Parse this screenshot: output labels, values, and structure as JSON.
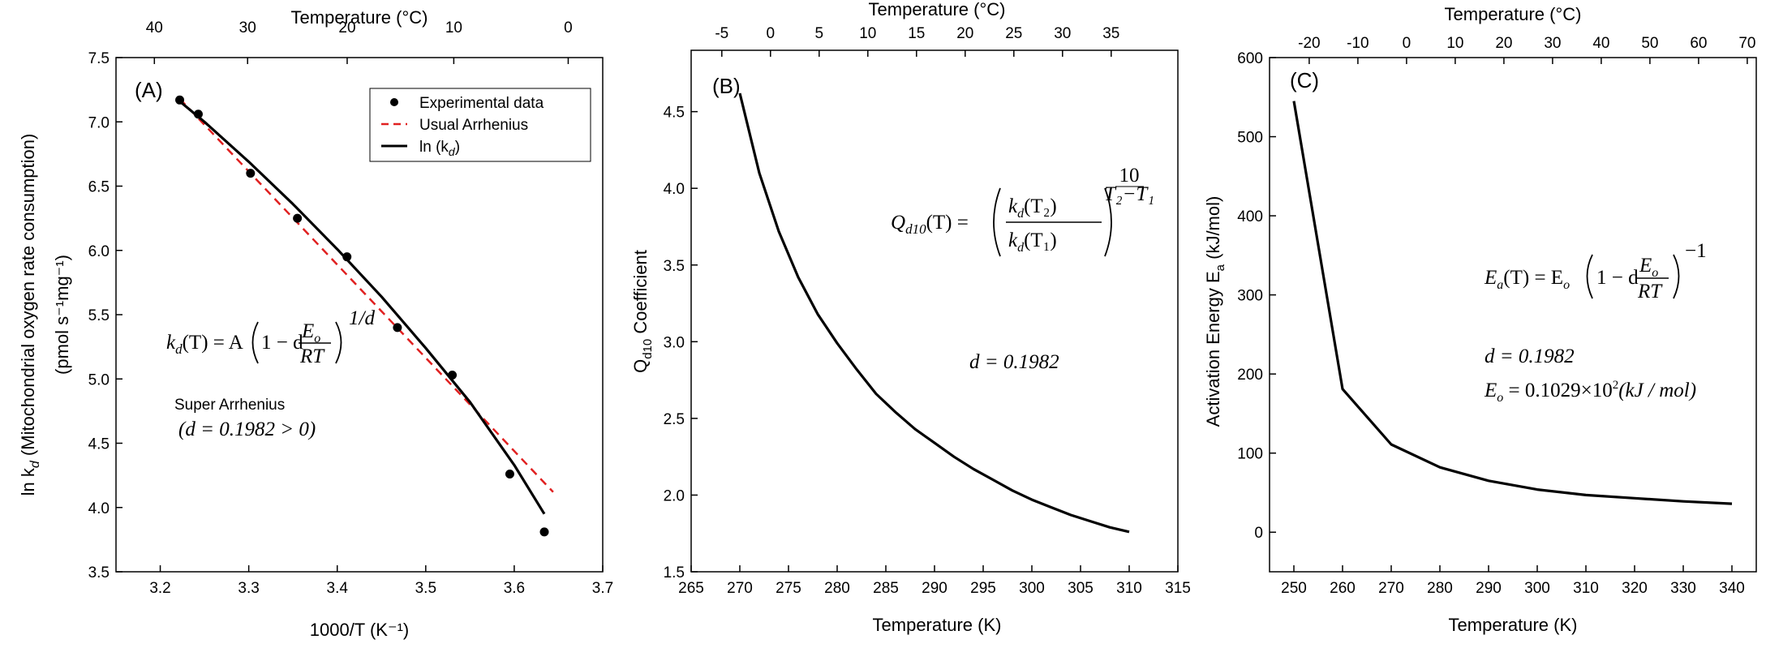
{
  "colors": {
    "curve": "#000000",
    "points": "#000000",
    "arrhenius": "#e02020"
  },
  "chart_data": [
    {
      "type": "scatter",
      "panel_label": "(A)",
      "top_axis_label": "Temperature (°C)",
      "top_ticks": [
        "40",
        "30",
        "20",
        "10",
        "0"
      ],
      "top_tick_values_C": [
        40,
        30,
        20,
        10,
        0
      ],
      "xlabel": "1000/T (K⁻¹)",
      "ylabel_line1": "ln k",
      "ylabel_line1_sub": "d",
      "ylabel_line1_rest": " (Mitochondrial oxygen rate consumption)",
      "ylabel_line2": "(pmol s⁻¹mg⁻¹)",
      "xlim": [
        3.15,
        3.7
      ],
      "ylim": [
        3.5,
        7.5
      ],
      "x_ticks": [
        "3.2",
        "3.3",
        "3.4",
        "3.5",
        "3.6",
        "3.7"
      ],
      "y_ticks": [
        "3.5",
        "4.0",
        "4.5",
        "5.0",
        "5.5",
        "6.0",
        "6.5",
        "7.0",
        "7.5"
      ],
      "legend": [
        {
          "name": "Experimental data",
          "style": "marker"
        },
        {
          "name": "Usual Arrhenius",
          "style": "dashed"
        },
        {
          "name": "ln (k",
          "sub": "d",
          "tail": ")",
          "style": "solid"
        }
      ],
      "experimental_data": {
        "x": [
          3.222,
          3.243,
          3.302,
          3.355,
          3.411,
          3.468,
          3.53,
          3.595,
          3.634
        ],
        "y": [
          7.17,
          7.06,
          6.6,
          6.25,
          5.95,
          5.4,
          5.03,
          4.26,
          3.81
        ]
      },
      "usual_arrhenius": {
        "x": [
          3.222,
          3.644
        ],
        "y": [
          7.18,
          4.12
        ]
      },
      "ln_kd_curve": {
        "x": [
          3.222,
          3.25,
          3.3,
          3.35,
          3.4,
          3.45,
          3.5,
          3.55,
          3.6,
          3.634
        ],
        "y": [
          7.16,
          7.0,
          6.69,
          6.36,
          6.01,
          5.64,
          5.24,
          4.82,
          4.33,
          3.95
        ]
      },
      "equation": {
        "lhs": "k",
        "lhs_sub": "d",
        "lhs_arg": "(T) = A",
        "inner": "1 − d",
        "frac_num": "E",
        "frac_num_sub": "o",
        "frac_den": "RT",
        "exp": "1/d"
      },
      "note_line1": "Super Arrhenius",
      "note_line2": "(d = 0.1982 > 0)"
    },
    {
      "type": "line",
      "panel_label": "(B)",
      "top_axis_label": "Temperature (°C)",
      "top_ticks": [
        "-5",
        "0",
        "5",
        "10",
        "15",
        "20",
        "25",
        "30",
        "35"
      ],
      "top_tick_values_C": [
        -5,
        0,
        5,
        10,
        15,
        20,
        25,
        30,
        35
      ],
      "xlabel": "Temperature (K)",
      "ylabel": "Q",
      "ylabel_sub": "d10",
      "ylabel_rest": " Coefficient",
      "xlim": [
        265,
        315
      ],
      "ylim": [
        1.5,
        4.9
      ],
      "x_ticks": [
        "265",
        "270",
        "275",
        "280",
        "285",
        "290",
        "295",
        "300",
        "305",
        "310",
        "315"
      ],
      "y_ticks": [
        "1.5",
        "2.0",
        "2.5",
        "3.0",
        "3.5",
        "4.0",
        "4.5"
      ],
      "series": [
        {
          "x": [
            270,
            272,
            274,
            276,
            278,
            280,
            282,
            284,
            286,
            288,
            290,
            292,
            294,
            296,
            298,
            300,
            302,
            304,
            306,
            308,
            310
          ],
          "y": [
            4.62,
            4.1,
            3.72,
            3.42,
            3.18,
            2.99,
            2.82,
            2.66,
            2.54,
            2.43,
            2.34,
            2.25,
            2.17,
            2.1,
            2.03,
            1.97,
            1.92,
            1.87,
            1.83,
            1.79,
            1.76
          ]
        }
      ],
      "equation": {
        "lhs": "Q",
        "lhs_sub": "d10",
        "lhs_arg": "(T) =",
        "num": "k",
        "num_sub": "d",
        "num_arg": "(T₂)",
        "den": "k",
        "den_sub": "d",
        "den_arg": "(T₁)",
        "exp_num": "10",
        "exp_den": "T₂−T₁"
      },
      "d_text": "d = 0.1982"
    },
    {
      "type": "line",
      "panel_label": "(C)",
      "top_axis_label": "Temperature (°C)",
      "top_ticks": [
        "-20",
        "-10",
        "0",
        "10",
        "20",
        "30",
        "40",
        "50",
        "60",
        "70"
      ],
      "top_tick_values_C": [
        -20,
        -10,
        0,
        10,
        20,
        30,
        40,
        50,
        60,
        70
      ],
      "xlabel": "Temperature (K)",
      "ylabel": "Activation Energy E",
      "ylabel_sub": "a",
      "ylabel_rest": " (kJ/mol)",
      "xlim": [
        245,
        345
      ],
      "ylim": [
        -50,
        600
      ],
      "x_ticks": [
        "250",
        "260",
        "270",
        "280",
        "290",
        "300",
        "310",
        "320",
        "330",
        "340"
      ],
      "y_ticks": [
        "0",
        "100",
        "200",
        "300",
        "400",
        "500",
        "600"
      ],
      "series": [
        {
          "x": [
            250,
            260,
            270,
            280,
            290,
            300,
            310,
            320,
            330,
            340
          ],
          "y": [
            545,
            181,
            111,
            82,
            65,
            54,
            47,
            43,
            39,
            36
          ]
        }
      ],
      "equation": {
        "lhs": "E",
        "lhs_sub": "a",
        "lhs_arg": "(T) = E",
        "lhs_arg_sub": "o",
        "inner": "1 − d",
        "frac_num": "E",
        "frac_num_sub": "o",
        "frac_den": "RT",
        "exp": "−1"
      },
      "d_text": "d = 0.1982",
      "eo_text_a": "E",
      "eo_text_sub": "o",
      "eo_text_b": " = 0.1029×10",
      "eo_text_sup": "2",
      "eo_text_c": "(kJ / mol)"
    }
  ]
}
